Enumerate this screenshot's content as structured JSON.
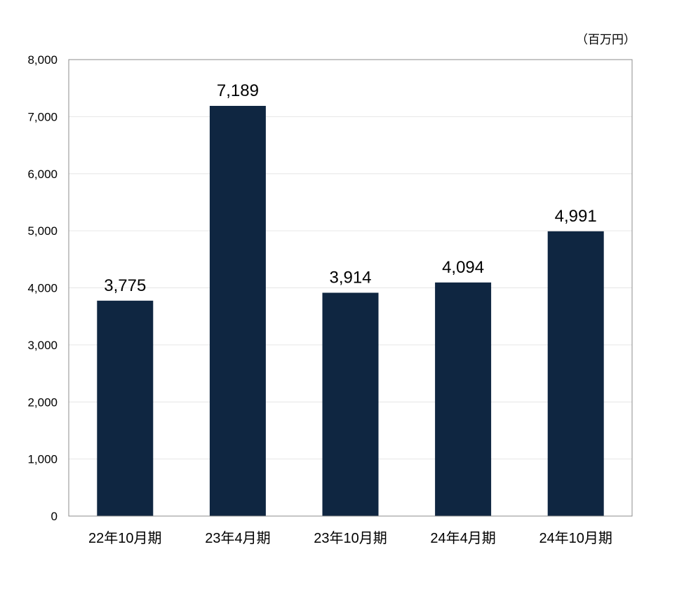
{
  "chart_data": {
    "type": "bar",
    "unit_label": "（百万円）",
    "categories": [
      "22年10月期",
      "23年4月期",
      "23年10月期",
      "24年4月期",
      "24年10月期"
    ],
    "values": [
      3775,
      7189,
      3914,
      4094,
      4991
    ],
    "data_labels": [
      "3,775",
      "7,189",
      "3,914",
      "4,094",
      "4,991"
    ],
    "ylim": [
      0,
      8000
    ],
    "yticks": [
      0,
      1000,
      2000,
      3000,
      4000,
      5000,
      6000,
      7000,
      8000
    ],
    "ytick_labels": [
      "0",
      "1,000",
      "2,000",
      "3,000",
      "4,000",
      "5,000",
      "6,000",
      "7,000",
      "8,000"
    ],
    "grid": true,
    "legend": "none",
    "bar_color": "#0f2641",
    "axis_color": "#8c8c8c",
    "grid_color": "#e6e6e6"
  }
}
